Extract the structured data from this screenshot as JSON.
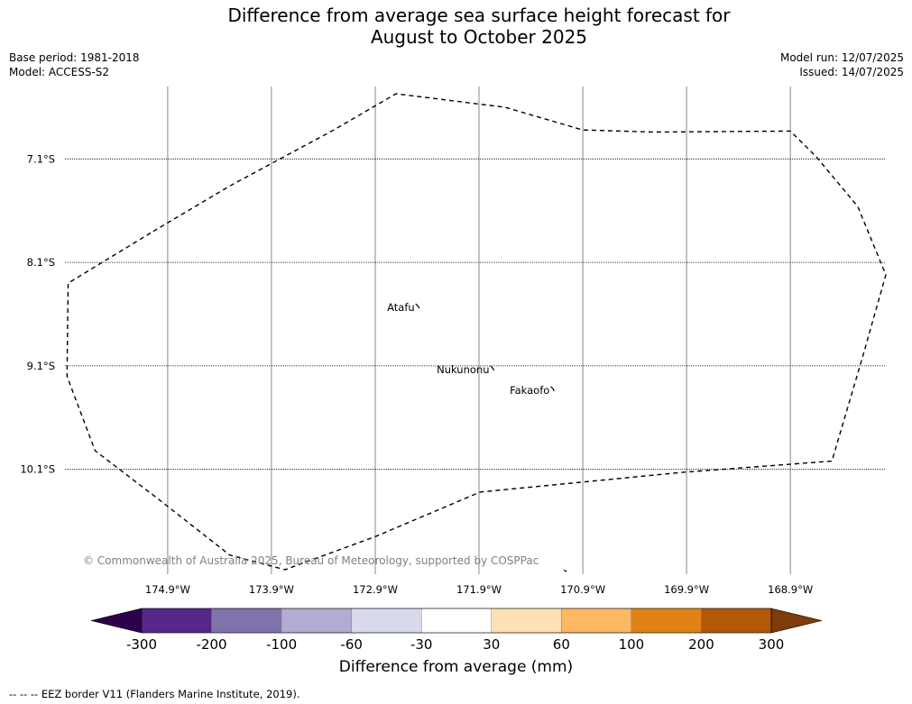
{
  "title": {
    "line1": "Difference from average sea surface height forecast for",
    "line2": "August to October 2025"
  },
  "meta": {
    "base_period": "Base period: 1981-2018",
    "model": "Model: ACCESS-S2",
    "model_run": "Model run: 12/07/2025",
    "issued": "Issued: 14/07/2025"
  },
  "map": {
    "longitudes": [
      -174.9,
      -173.9,
      -172.9,
      -171.9,
      -170.9,
      -169.9,
      -168.9
    ],
    "lon_labels": [
      "174.9°W",
      "173.9°W",
      "172.9°W",
      "171.9°W",
      "170.9°W",
      "169.9°W",
      "168.9°W"
    ],
    "latitudes": [
      -7.1,
      -8.1,
      -9.1,
      -10.1
    ],
    "lat_labels": [
      "7.1°S",
      "8.1°S",
      "9.1°S",
      "10.1°S"
    ],
    "lon_range": [
      -175.89,
      -167.98
    ],
    "lat_range": [
      -11.07,
      -6.4
    ],
    "eez_border": [
      [
        -175.04,
        -7.8
      ],
      [
        -174.3,
        -7.36
      ],
      [
        -173.3,
        -6.82
      ],
      [
        -172.7,
        -6.47
      ],
      [
        -171.65,
        -6.6
      ],
      [
        -170.9,
        -6.82
      ],
      [
        -170.2,
        -6.84
      ],
      [
        -168.9,
        -6.83
      ],
      [
        -168.65,
        -7.08
      ],
      [
        -168.25,
        -7.56
      ],
      [
        -167.98,
        -8.22
      ],
      [
        -168.2,
        -9.0
      ],
      [
        -168.4,
        -9.68
      ],
      [
        -168.5,
        -10.02
      ],
      [
        -169.95,
        -10.13
      ],
      [
        -171.89,
        -10.32
      ],
      [
        -172.9,
        -10.75
      ],
      [
        -173.77,
        -11.07
      ],
      [
        -174.3,
        -10.93
      ],
      [
        -175.0,
        -10.38
      ],
      [
        -175.6,
        -9.92
      ],
      [
        -175.87,
        -9.2
      ],
      [
        -175.86,
        -8.3
      ],
      [
        -175.04,
        -7.8
      ]
    ],
    "islands": [
      {
        "name": "Atafu",
        "lon": -172.52,
        "lat": -8.57
      },
      {
        "name": "Nukunonu",
        "lon": -171.8,
        "lat": -9.17
      },
      {
        "name": "Fakaofo",
        "lon": -171.22,
        "lat": -9.37
      }
    ],
    "copyright": "© Commonwealth of Australia 2025, Bureau of Meteorology, supported by COSPPac"
  },
  "colorbar": {
    "title": "Difference from average (mm)",
    "tick_labels": [
      "-300",
      "-200",
      "-100",
      "-60",
      "-30",
      "30",
      "60",
      "100",
      "200",
      "300"
    ],
    "colors": [
      "#2d004b",
      "#542788",
      "#8073ac",
      "#b2abd2",
      "#d8daeb",
      "#ffffff",
      "#fee0b6",
      "#fdb863",
      "#e08214",
      "#b35806",
      "#7f3b08"
    ]
  },
  "eez_note": "--  --  -- EEZ border V11 (Flanders Marine Institute, 2019)."
}
